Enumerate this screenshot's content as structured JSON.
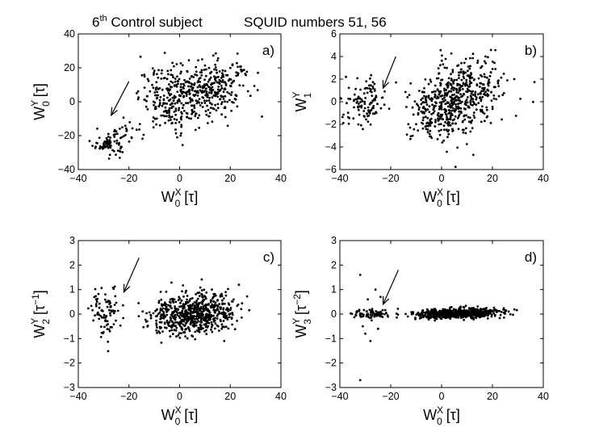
{
  "title": {
    "subject_ordinal": "6",
    "subject_suffix": "th",
    "subject_text": " Control subject",
    "squid_text": "SQUID numbers 51, 56"
  },
  "chart_data": [
    {
      "type": "scatter",
      "panel_label": "a)",
      "xlabel": {
        "base": "W",
        "sub": "0",
        "sup": "X",
        "unit": " [τ]"
      },
      "ylabel": {
        "base": "W",
        "sub": "0",
        "sup": "Y",
        "unit": " [τ]"
      },
      "xlim": [
        -40,
        40
      ],
      "ylim": [
        -40,
        40
      ],
      "xticks": [
        "−40",
        "−20",
        "0",
        "20",
        "40"
      ],
      "yticks": [
        "−40",
        "−20",
        "0",
        "20",
        "40"
      ],
      "arrow": {
        "from": [
          -20,
          12
        ],
        "to": [
          -27,
          -8
        ]
      },
      "clusters": [
        {
          "cx": -28,
          "cy": -25,
          "sx": 3,
          "sy": 3,
          "n": 70
        },
        {
          "cx": -22,
          "cy": -17,
          "sx": 3,
          "sy": 3,
          "n": 25
        },
        {
          "cx": -2,
          "cy": 2,
          "sx": 7,
          "sy": 9,
          "n": 250
        },
        {
          "cx": 12,
          "cy": 8,
          "sx": 7,
          "sy": 8,
          "n": 250
        },
        {
          "cx": 24,
          "cy": 20,
          "sx": 2,
          "sy": 3,
          "n": 15
        }
      ],
      "grid": false,
      "marker_color": "#000000"
    },
    {
      "type": "scatter",
      "panel_label": "b)",
      "xlabel": {
        "base": "W",
        "sub": "0",
        "sup": "X",
        "unit": " [τ]"
      },
      "ylabel": {
        "base": "W",
        "sub": "1",
        "sup": "Y",
        "unit": ""
      },
      "xlim": [
        -40,
        40
      ],
      "ylim": [
        -6,
        6
      ],
      "xticks": [
        "−40",
        "−20",
        "0",
        "20",
        "40"
      ],
      "yticks": [
        "−6",
        "−4",
        "−2",
        "0",
        "2",
        "4",
        "6"
      ],
      "arrow": {
        "from": [
          -18,
          4
        ],
        "to": [
          -23,
          1.2
        ]
      },
      "clusters": [
        {
          "cx": -30,
          "cy": 0,
          "sx": 4,
          "sy": 1.0,
          "n": 110
        },
        {
          "cx": -2,
          "cy": -0.8,
          "sx": 6,
          "sy": 1.4,
          "n": 250
        },
        {
          "cx": 10,
          "cy": 0.8,
          "sx": 7,
          "sy": 1.5,
          "n": 350
        }
      ],
      "grid": false,
      "marker_color": "#000000"
    },
    {
      "type": "scatter",
      "panel_label": "c)",
      "xlabel": {
        "base": "W",
        "sub": "0",
        "sup": "X",
        "unit": " [τ]"
      },
      "ylabel": {
        "base": "W",
        "sub": "2",
        "sup": "Y",
        "unit": " [τ",
        "unit_sup": "−1",
        "unit_end": "]"
      },
      "xlim": [
        -40,
        40
      ],
      "ylim": [
        -3,
        3
      ],
      "xticks": [
        "−40",
        "−20",
        "0",
        "20",
        "40"
      ],
      "yticks": [
        "−3",
        "−2",
        "−1",
        "0",
        "1",
        "2",
        "3"
      ],
      "arrow": {
        "from": [
          -16,
          2.3
        ],
        "to": [
          -22,
          0.9
        ]
      },
      "clusters": [
        {
          "cx": -29,
          "cy": 0.1,
          "sx": 3,
          "sy": 0.5,
          "n": 90
        },
        {
          "cx": 0,
          "cy": -0.1,
          "sx": 6,
          "sy": 0.4,
          "n": 300
        },
        {
          "cx": 10,
          "cy": 0.1,
          "sx": 6,
          "sy": 0.4,
          "n": 350
        }
      ],
      "grid": false,
      "marker_color": "#000000"
    },
    {
      "type": "scatter",
      "panel_label": "d)",
      "xlabel": {
        "base": "W",
        "sub": "0",
        "sup": "X",
        "unit": " [τ]"
      },
      "ylabel": {
        "base": "W",
        "sub": "3",
        "sup": "Y",
        "unit": " [τ",
        "unit_sup": "−2",
        "unit_end": "]"
      },
      "xlim": [
        -40,
        40
      ],
      "ylim": [
        -3,
        3
      ],
      "xticks": [
        "−40",
        "−20",
        "0",
        "20",
        "40"
      ],
      "yticks": [
        "−3",
        "−2",
        "−1",
        "0",
        "1",
        "2",
        "3"
      ],
      "arrow": {
        "from": [
          -17,
          1.8
        ],
        "to": [
          -23,
          0.4
        ]
      },
      "clusters": [
        {
          "cx": -27,
          "cy": 0,
          "sx": 4,
          "sy": 0.1,
          "n": 80
        },
        {
          "cx": 0,
          "cy": 0,
          "sx": 6,
          "sy": 0.1,
          "n": 300
        },
        {
          "cx": 11,
          "cy": 0.05,
          "sx": 7,
          "sy": 0.1,
          "n": 350
        }
      ],
      "outliers": [
        [
          -32,
          1.6
        ],
        [
          -32,
          -2.7
        ],
        [
          -28,
          -1.1
        ],
        [
          -30,
          -0.8
        ],
        [
          -26,
          1.0
        ],
        [
          -25,
          -0.6
        ],
        [
          -24,
          0.7
        ],
        [
          -31,
          -0.5
        ],
        [
          -29,
          0.6
        ]
      ],
      "grid": false,
      "marker_color": "#000000"
    }
  ]
}
